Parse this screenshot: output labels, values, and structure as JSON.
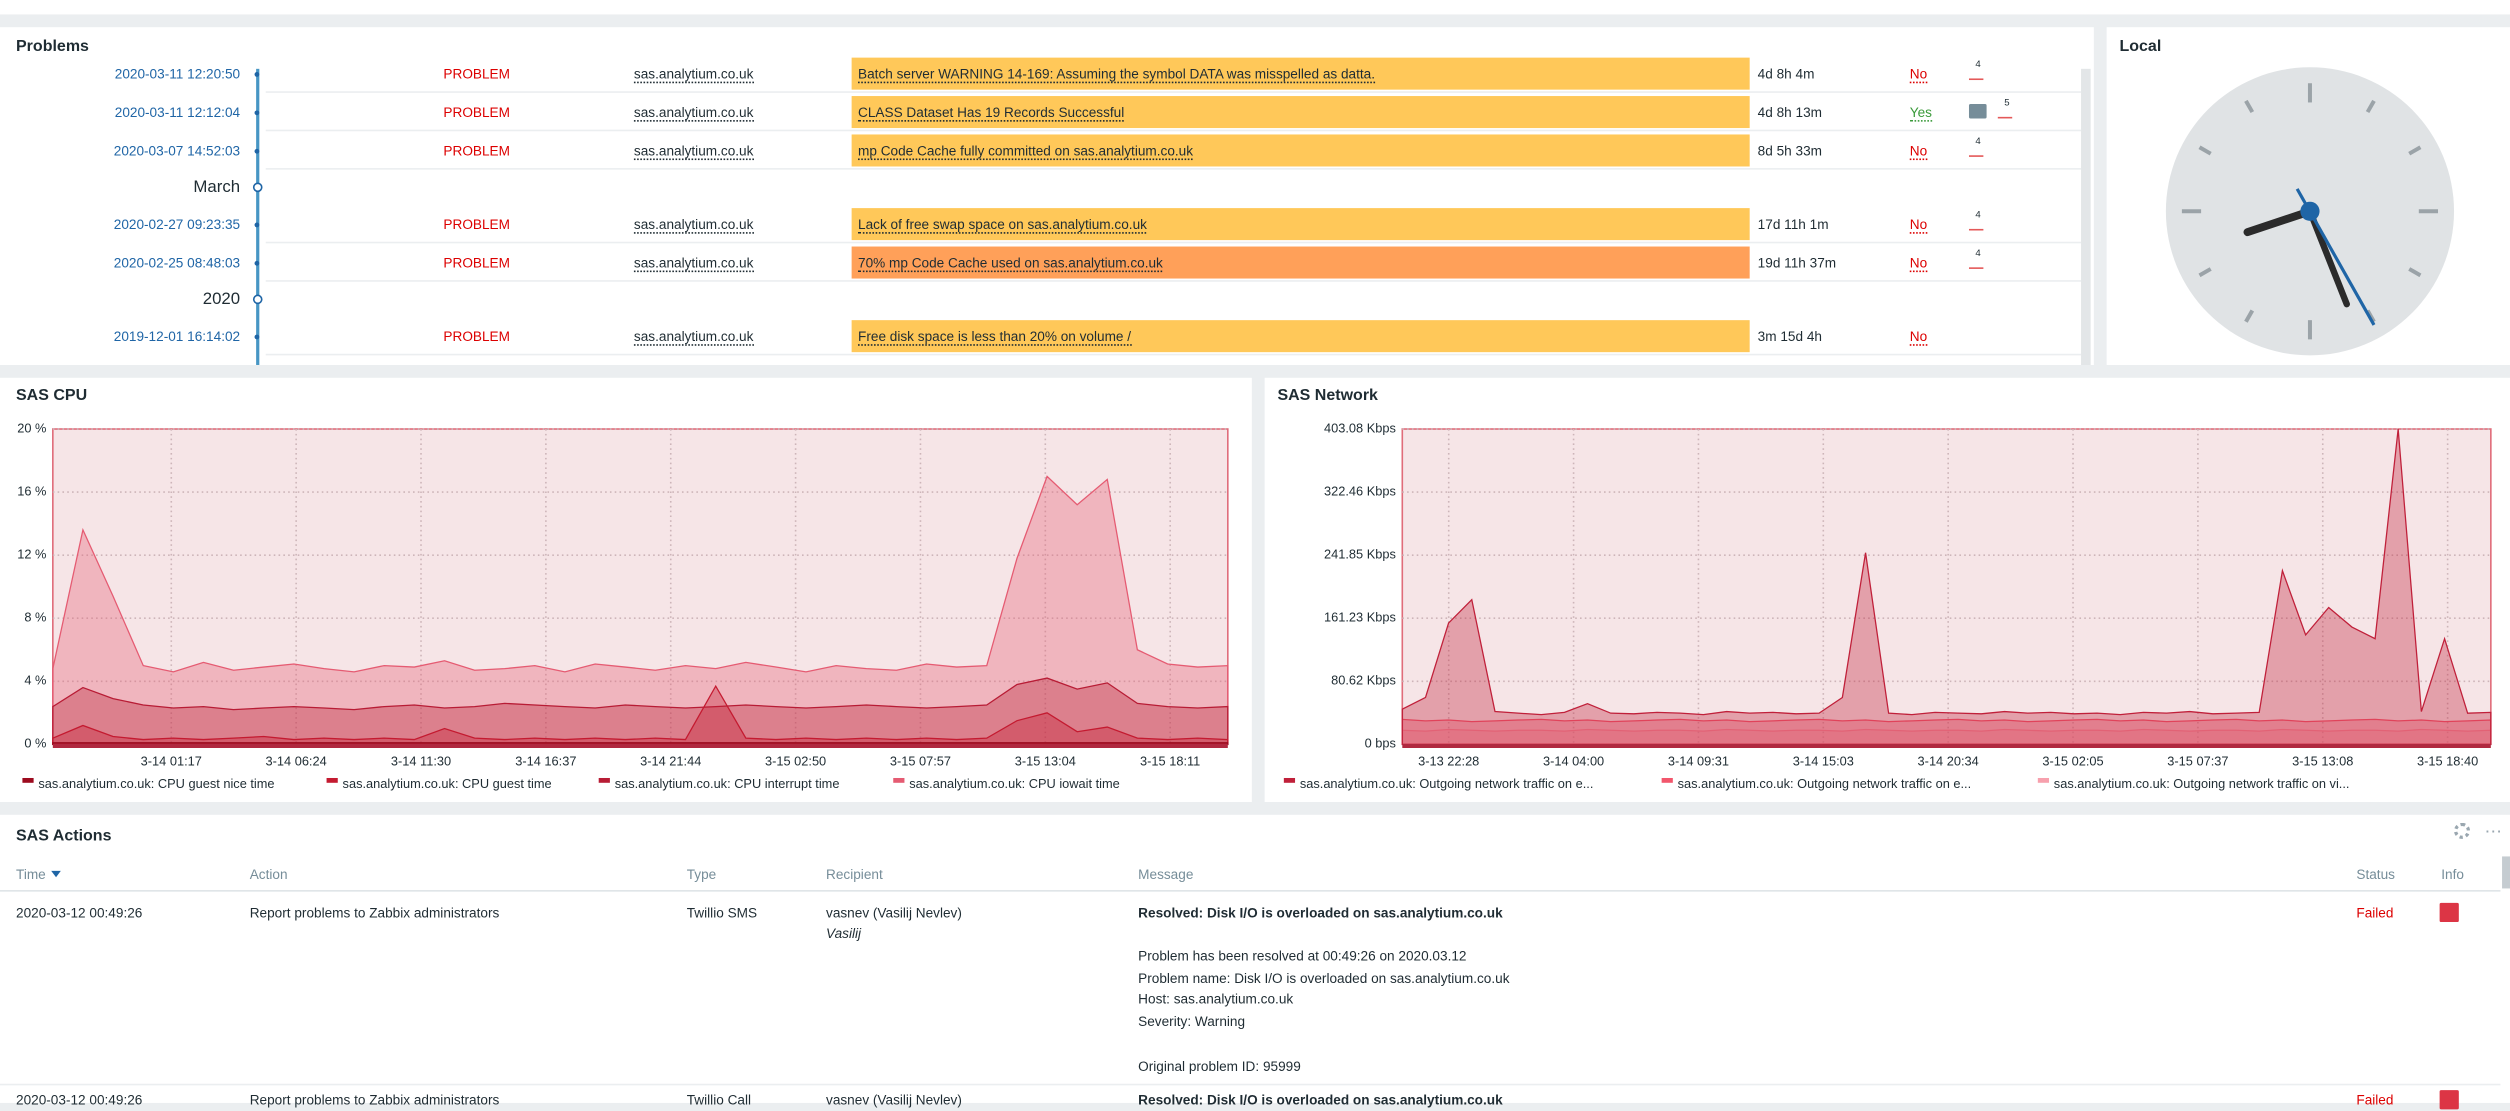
{
  "problems": {
    "title": "Problems",
    "entries": [
      {
        "time": "2020-03-11 12:20:50",
        "status": "PROBLEM",
        "host": "sas.analytium.co.uk",
        "problem": "Batch server WARNING 14-169: Assuming the symbol DATA was misspelled as datta.",
        "severity_color": "#ffc859",
        "duration": "4d 8h 4m",
        "ack": "No",
        "ack_color": "#dc0000",
        "actions": 4
      },
      {
        "time": "2020-03-11 12:12:04",
        "status": "PROBLEM",
        "host": "sas.analytium.co.uk",
        "problem": "CLASS Dataset Has 19 Records Successful",
        "severity_color": "#ffc859",
        "duration": "4d 8h 13m",
        "ack": "Yes",
        "ack_color": "#3a9a3a",
        "has_message": true,
        "actions": 5
      },
      {
        "time": "2020-03-07 14:52:03",
        "status": "PROBLEM",
        "host": "sas.analytium.co.uk",
        "problem": "mp Code Cache fully committed on sas.analytium.co.uk",
        "severity_color": "#ffc859",
        "duration": "8d 5h 33m",
        "ack": "No",
        "ack_color": "#dc0000",
        "actions": 4
      },
      {
        "label": "March"
      },
      {
        "time": "2020-02-27 09:23:35",
        "status": "PROBLEM",
        "host": "sas.analytium.co.uk",
        "problem": "Lack of free swap space on sas.analytium.co.uk",
        "severity_color": "#ffc859",
        "duration": "17d 11h 1m",
        "ack": "No",
        "ack_color": "#dc0000",
        "actions": 4
      },
      {
        "time": "2020-02-25 08:48:03",
        "status": "PROBLEM",
        "host": "sas.analytium.co.uk",
        "problem": "70% mp Code Cache used on sas.analytium.co.uk",
        "severity_color": "#ffa059",
        "duration": "19d 11h 37m",
        "ack": "No",
        "ack_color": "#dc0000",
        "actions": 4
      },
      {
        "label": "2020"
      },
      {
        "time": "2019-12-01 16:14:02",
        "status": "PROBLEM",
        "host": "sas.analytium.co.uk",
        "problem": "Free disk space is less than 20% on volume /",
        "severity_color": "#ffc859",
        "duration": "3m 15d 4h",
        "ack": "No",
        "ack_color": "#dc0000"
      }
    ]
  },
  "clock": {
    "title": "Local"
  },
  "cpu": {
    "title": "SAS CPU",
    "ylim": [
      0,
      20
    ],
    "yticks": [
      {
        "value": 0,
        "label": "0 %"
      },
      {
        "value": 4,
        "label": "4 %"
      },
      {
        "value": 8,
        "label": "8 %"
      },
      {
        "value": 12,
        "label": "12 %"
      },
      {
        "value": 16,
        "label": "16 %"
      },
      {
        "value": 20,
        "label": "20 %"
      }
    ],
    "xtick_labels": [
      "3-14 01:17",
      "3-14 06:24",
      "3-14 11:30",
      "3-14 16:37",
      "3-14 21:44",
      "3-15 02:50",
      "3-15 07:57",
      "3-15 13:04",
      "3-15 18:11"
    ],
    "series": [
      {
        "name": "sas.analytium.co.uk: CPU guest nice time",
        "color": "#9c0a1e",
        "values": [
          0.1,
          0.1,
          0.1,
          0.1,
          0.1,
          0.1,
          0.1,
          0.1,
          0.1,
          0.1,
          0.1,
          0.1,
          0.1,
          0.1,
          0.1,
          0.1,
          0.1,
          0.1,
          0.1,
          0.1,
          0.1,
          0.1,
          0.1,
          0.1,
          0.1,
          0.1,
          0.1,
          0.1,
          0.1,
          0.1,
          0.1,
          0.1,
          0.1,
          0.1,
          0.1,
          0.1,
          0.1,
          0.1,
          0.1,
          0.1
        ]
      },
      {
        "name": "sas.analytium.co.uk: CPU guest time",
        "color": "#c41a30",
        "values": [
          0.4,
          1.2,
          0.5,
          0.3,
          0.4,
          0.3,
          0.4,
          0.5,
          0.3,
          0.4,
          0.3,
          0.4,
          0.3,
          1.0,
          0.4,
          0.3,
          0.4,
          0.3,
          0.4,
          0.3,
          0.4,
          0.3,
          3.7,
          0.4,
          0.3,
          0.4,
          0.3,
          0.4,
          0.3,
          0.4,
          0.3,
          0.4,
          1.5,
          2.0,
          0.8,
          1.1,
          0.4,
          0.3,
          0.4,
          0.3
        ]
      },
      {
        "name": "sas.analytium.co.uk: CPU interrupt time",
        "color": "#b81c35",
        "values": [
          2.4,
          3.6,
          2.9,
          2.5,
          2.3,
          2.4,
          2.2,
          2.3,
          2.4,
          2.3,
          2.2,
          2.4,
          2.5,
          2.3,
          2.4,
          2.6,
          2.5,
          2.4,
          2.3,
          2.5,
          2.4,
          2.3,
          2.4,
          2.5,
          2.4,
          2.3,
          2.4,
          2.5,
          2.4,
          2.3,
          2.4,
          2.5,
          3.8,
          4.2,
          3.5,
          3.9,
          2.6,
          2.4,
          2.3,
          2.4
        ]
      },
      {
        "name": "sas.analytium.co.uk: CPU iowait time",
        "color": "#e55b72",
        "values": [
          4.8,
          13.6,
          9.4,
          5.0,
          4.6,
          5.2,
          4.7,
          4.9,
          5.1,
          4.8,
          4.6,
          5.0,
          4.9,
          5.3,
          4.7,
          4.8,
          5.0,
          4.6,
          5.1,
          4.9,
          4.7,
          5.0,
          4.8,
          5.2,
          4.9,
          4.6,
          5.0,
          4.8,
          4.7,
          5.1,
          4.9,
          5.0,
          11.8,
          17.0,
          15.2,
          16.8,
          6.0,
          5.1,
          4.9,
          5.0
        ]
      }
    ]
  },
  "network": {
    "title": "SAS Network",
    "ylim": [
      0,
      403.08
    ],
    "yticks": [
      {
        "value": 0,
        "label": "0 bps"
      },
      {
        "value": 80.62,
        "label": "80.62 Kbps"
      },
      {
        "value": 161.23,
        "label": "161.23 Kbps"
      },
      {
        "value": 241.85,
        "label": "241.85 Kbps"
      },
      {
        "value": 322.46,
        "label": "322.46 Kbps"
      },
      {
        "value": 403.08,
        "label": "403.08 Kbps"
      }
    ],
    "xtick_labels": [
      "3-13 22:28",
      "3-14 04:00",
      "3-14 09:31",
      "3-14 15:03",
      "3-14 20:34",
      "3-15 02:05",
      "3-15 07:37",
      "3-15 13:08",
      "3-15 18:40"
    ],
    "series": [
      {
        "name": "sas.analytium.co.uk: Outgoing network traffic on e...",
        "color": "#c0203a",
        "values": [
          45,
          60,
          155,
          185,
          42,
          40,
          38,
          41,
          52,
          40,
          39,
          41,
          40,
          38,
          42,
          40,
          41,
          39,
          40,
          60,
          245,
          40,
          38,
          41,
          40,
          39,
          42,
          40,
          41,
          39,
          40,
          38,
          41,
          40,
          42,
          39,
          40,
          41,
          222,
          140,
          175,
          150,
          135,
          403,
          42,
          135,
          40,
          41
        ]
      },
      {
        "name": "sas.analytium.co.uk: Outgoing network traffic on e...",
        "color": "#f2566c",
        "values": [
          32,
          30,
          31,
          29,
          30,
          31,
          32,
          30,
          31,
          29,
          30,
          31,
          32,
          30,
          31,
          29,
          30,
          31,
          32,
          30,
          31,
          29,
          30,
          31,
          32,
          30,
          31,
          29,
          30,
          31,
          32,
          30,
          31,
          29,
          30,
          31,
          32,
          30,
          31,
          29,
          30,
          31,
          32,
          30,
          31,
          29,
          30,
          31
        ]
      },
      {
        "name": "sas.analytium.co.uk: Outgoing network traffic on vi...",
        "color": "#f7a0ad",
        "values": [
          18,
          17,
          19,
          18,
          17,
          18,
          18,
          17,
          19,
          18,
          17,
          18,
          18,
          17,
          19,
          18,
          17,
          18,
          18,
          17,
          19,
          18,
          17,
          18,
          18,
          17,
          19,
          18,
          17,
          18,
          18,
          17,
          19,
          18,
          17,
          18,
          18,
          17,
          19,
          18,
          17,
          18,
          18,
          17,
          19,
          18,
          17,
          18
        ]
      }
    ]
  },
  "actions": {
    "title": "SAS Actions",
    "columns": [
      "Time",
      "Action",
      "Type",
      "Recipient",
      "Message",
      "Status",
      "Info"
    ],
    "rows": [
      {
        "time": "2020-03-12 00:49:26",
        "action": "Report problems to Zabbix administrators",
        "type": "Twillio SMS",
        "recipient": "vasnev (Vasilij Nevlev)",
        "recipient_alias": "Vasilij",
        "message_title": "Resolved: Disk I/O is overloaded on sas.analytium.co.uk",
        "message_body": [
          [
            "Problem has been resolved at 00:49:26 on 2020.03.12",
            "Problem name: Disk I/O is overloaded on sas.analytium.co.uk",
            "Host: sas.analytium.co.uk",
            "Severity: Warning"
          ],
          [
            "Original problem ID: 95999"
          ]
        ],
        "status": "Failed"
      },
      {
        "time": "2020-03-12 00:49:26",
        "action": "Report problems to Zabbix administrators",
        "type": "Twillio Call",
        "recipient": "vasnev (Vasilij Nevlev)",
        "message_title": "Resolved: Disk I/O is overloaded on sas.analytium.co.uk",
        "status": "Failed"
      }
    ]
  }
}
